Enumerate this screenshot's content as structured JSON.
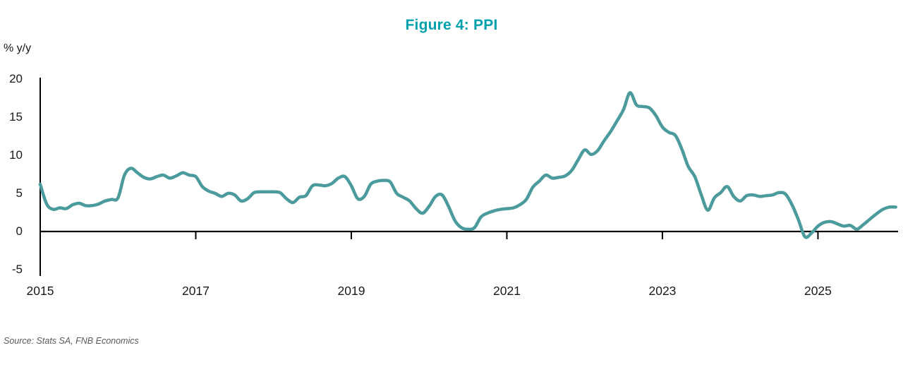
{
  "figure": {
    "title": "Figure 4: PPI",
    "unit_label": "% y/y",
    "source": "Source: Stats SA, FNB Economics"
  },
  "colors": {
    "title_accent": "#00a1ac",
    "line": "#4b9b9d",
    "axis": "#000000",
    "tick_text": "#1a1a1a",
    "source_text": "#595959"
  },
  "chart_data": {
    "type": "line",
    "title": "Figure 4: PPI",
    "ylabel": "% y/y",
    "xlabel": "",
    "series_name": "PPI, % y/y",
    "frequency": "monthly",
    "x_start": "2015-01",
    "ylim": [
      -5,
      20
    ],
    "xlim_years": [
      2015.0,
      2026.03
    ],
    "y_ticks": [
      20,
      15,
      10,
      5,
      0,
      -5
    ],
    "x_ticks": [
      2015,
      2017,
      2019,
      2021,
      2023,
      2025
    ],
    "grid": false,
    "legend": false,
    "values": [
      6.2,
      3.6,
      2.9,
      3.1,
      3.0,
      3.5,
      3.7,
      3.4,
      3.4,
      3.6,
      4.0,
      4.2,
      4.4,
      7.4,
      8.3,
      7.7,
      7.1,
      6.9,
      7.2,
      7.4,
      7.0,
      7.3,
      7.7,
      7.4,
      7.2,
      5.9,
      5.3,
      5.0,
      4.6,
      5.0,
      4.8,
      4.0,
      4.3,
      5.1,
      5.2,
      5.2,
      5.2,
      5.1,
      4.3,
      3.8,
      4.5,
      4.7,
      6.0,
      6.1,
      6.0,
      6.3,
      7.0,
      7.2,
      6.0,
      4.3,
      4.6,
      6.2,
      6.6,
      6.7,
      6.5,
      5.0,
      4.5,
      4.0,
      3.0,
      2.4,
      3.3,
      4.6,
      4.8,
      3.3,
      1.4,
      0.5,
      0.3,
      0.5,
      1.9,
      2.4,
      2.7,
      2.9,
      3.0,
      3.1,
      3.5,
      4.2,
      5.8,
      6.6,
      7.4,
      7.0,
      7.1,
      7.3,
      8.0,
      9.4,
      10.7,
      10.1,
      10.6,
      11.9,
      13.1,
      14.5,
      16.0,
      18.2,
      16.6,
      16.4,
      16.2,
      15.2,
      13.7,
      13.0,
      12.6,
      10.8,
      8.5,
      7.2,
      4.8,
      2.8,
      4.4,
      5.1,
      5.9,
      4.6,
      4.0,
      4.7,
      4.8,
      4.6,
      4.7,
      4.8,
      5.1,
      4.9,
      3.5,
      1.5,
      -0.7,
      -0.2,
      0.7,
      1.2,
      1.3,
      1.0,
      0.7,
      0.8,
      0.3,
      0.9,
      1.6,
      2.3,
      2.9,
      3.2,
      3.2
    ]
  }
}
